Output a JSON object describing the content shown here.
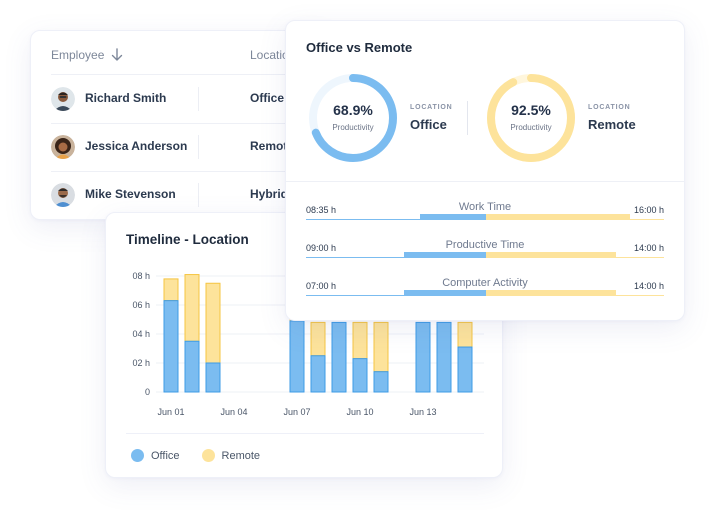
{
  "colors": {
    "office": "#7bbcf0",
    "office_border": "#3d9be6",
    "remote": "#fde39b",
    "remote_border": "#f5c542",
    "ring_track_office": "#eef6fd",
    "ring_track_remote": "#fff6dc"
  },
  "employee_table": {
    "headers": {
      "employee": "Employee",
      "location": "Location"
    },
    "sort_icon": "arrow-down-icon",
    "rows": [
      {
        "name": "Richard Smith",
        "location": "Office"
      },
      {
        "name": "Jessica Anderson",
        "location": "Remote"
      },
      {
        "name": "Mike Stevenson",
        "location": "Hybrid"
      }
    ]
  },
  "office_vs_remote": {
    "title": "Office vs Remote",
    "gauges": [
      {
        "percent": "68.9%",
        "value": 68.9,
        "sub": "Productivity",
        "label": "LOCATION",
        "location": "Office"
      },
      {
        "percent": "92.5%",
        "value": 92.5,
        "sub": "Productivity",
        "label": "LOCATION",
        "location": "Remote"
      }
    ],
    "metrics": [
      {
        "label": "Work Time",
        "start": "08:35 h",
        "end": "16:00 h"
      },
      {
        "label": "Productive Time",
        "start": "09:00 h",
        "end": "14:00 h"
      },
      {
        "label": "Computer Activity",
        "start": "07:00 h",
        "end": "14:00 h"
      }
    ]
  },
  "timeline": {
    "title": "Timeline - Location",
    "legend": [
      {
        "label": "Office"
      },
      {
        "label": "Remote"
      }
    ]
  },
  "chart_data": {
    "type": "bar",
    "stacked": true,
    "title": "Timeline - Location",
    "xlabel": "",
    "ylabel": "",
    "ylim": [
      0,
      8
    ],
    "y_ticks": [
      "0",
      "02 h",
      "04 h",
      "06 h",
      "08 h"
    ],
    "x_tick_labels": [
      "Jun 01",
      "Jun 04",
      "Jun 07",
      "Jun 10",
      "Jun 13"
    ],
    "categories": [
      "Jun 01",
      "Jun 02",
      "Jun 03",
      "Jun 04",
      "Jun 05",
      "Jun 06",
      "Jun 07",
      "Jun 08",
      "Jun 09",
      "Jun 10",
      "Jun 11",
      "Jun 12",
      "Jun 13",
      "Jun 14",
      "Jun 15"
    ],
    "series": [
      {
        "name": "Office",
        "values": [
          6.3,
          3.5,
          2.0,
          0,
          0,
          0,
          4.9,
          2.5,
          4.8,
          2.3,
          1.4,
          0,
          4.8,
          4.8,
          3.1
        ]
      },
      {
        "name": "Remote",
        "values": [
          1.5,
          4.6,
          5.5,
          0,
          0,
          0,
          3.1,
          2.3,
          0,
          2.5,
          3.4,
          0,
          0,
          0,
          1.7
        ]
      }
    ],
    "grid": true,
    "legend_position": "bottom-left"
  }
}
